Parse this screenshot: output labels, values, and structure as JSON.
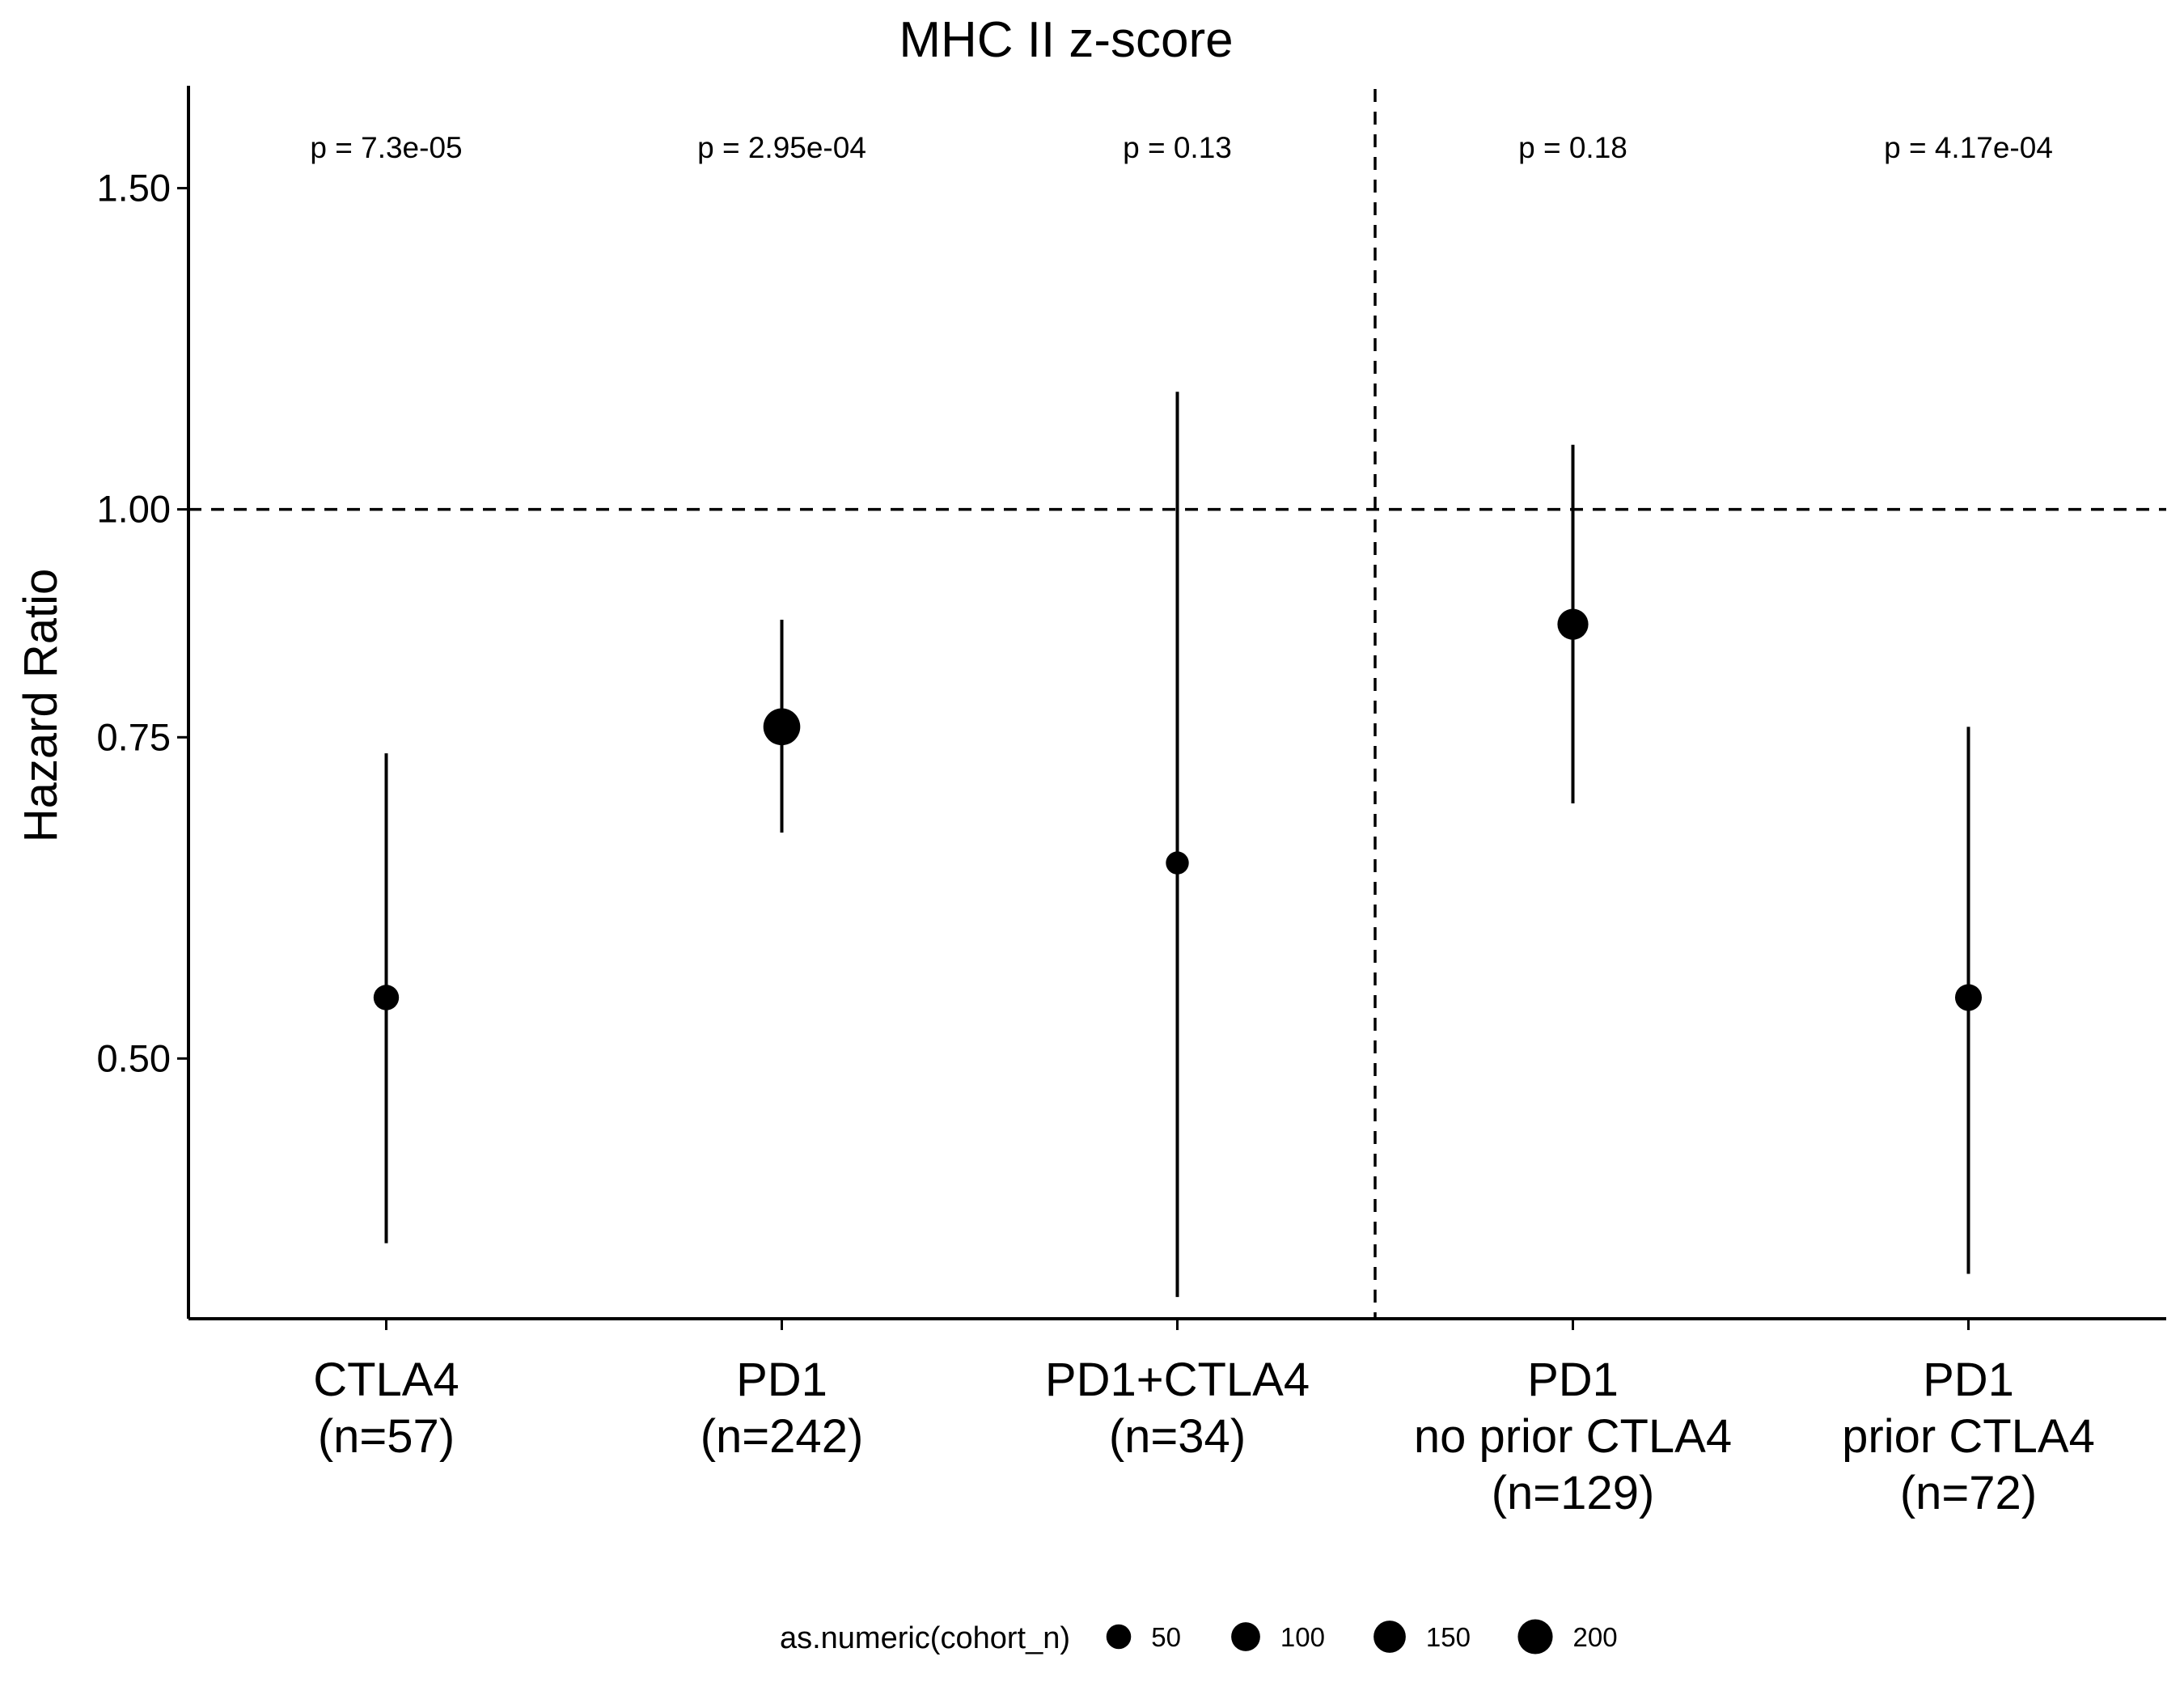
{
  "chart_data": {
    "type": "scatter",
    "title": "MHC II z-score",
    "xlabel": "",
    "ylabel": "Hazard Ratio",
    "y_scale": "log",
    "ylim": [
      0.36,
      1.7
    ],
    "yticks": [
      0.5,
      0.75,
      1.0,
      1.5
    ],
    "ytick_labels": [
      "0.50",
      "0.75",
      "1.00",
      "1.50"
    ],
    "reference_line_y": 1.0,
    "separator_after_category": 3,
    "grid": false,
    "categories": [
      {
        "lines": [
          "CTLA4",
          "(n=57)"
        ]
      },
      {
        "lines": [
          "PD1",
          "(n=242)"
        ]
      },
      {
        "lines": [
          "PD1+CTLA4",
          "(n=34)"
        ]
      },
      {
        "lines": [
          "PD1",
          "no prior CTLA4",
          "(n=129)"
        ]
      },
      {
        "lines": [
          "PD1",
          "prior CTLA4",
          "(n=72)"
        ]
      }
    ],
    "points": [
      {
        "hr": 0.54,
        "lower": 0.396,
        "upper": 0.735,
        "cohort_n": 57,
        "p_label": "p = 7.3e-05"
      },
      {
        "hr": 0.76,
        "lower": 0.665,
        "upper": 0.87,
        "cohort_n": 242,
        "p_label": "p = 2.95e-04"
      },
      {
        "hr": 0.64,
        "lower": 0.37,
        "upper": 1.16,
        "cohort_n": 34,
        "p_label": "p = 0.13"
      },
      {
        "hr": 0.865,
        "lower": 0.69,
        "upper": 1.085,
        "cohort_n": 129,
        "p_label": "p = 0.18"
      },
      {
        "hr": 0.54,
        "lower": 0.381,
        "upper": 0.76,
        "cohort_n": 72,
        "p_label": "p = 4.17e-04"
      }
    ],
    "legend": {
      "title": "as.numeric(cohort_n)",
      "position": "bottom",
      "entries": [
        {
          "value": 50,
          "label": "50"
        },
        {
          "value": 100,
          "label": "100"
        },
        {
          "value": 150,
          "label": "150"
        },
        {
          "value": 200,
          "label": "200"
        }
      ]
    }
  }
}
